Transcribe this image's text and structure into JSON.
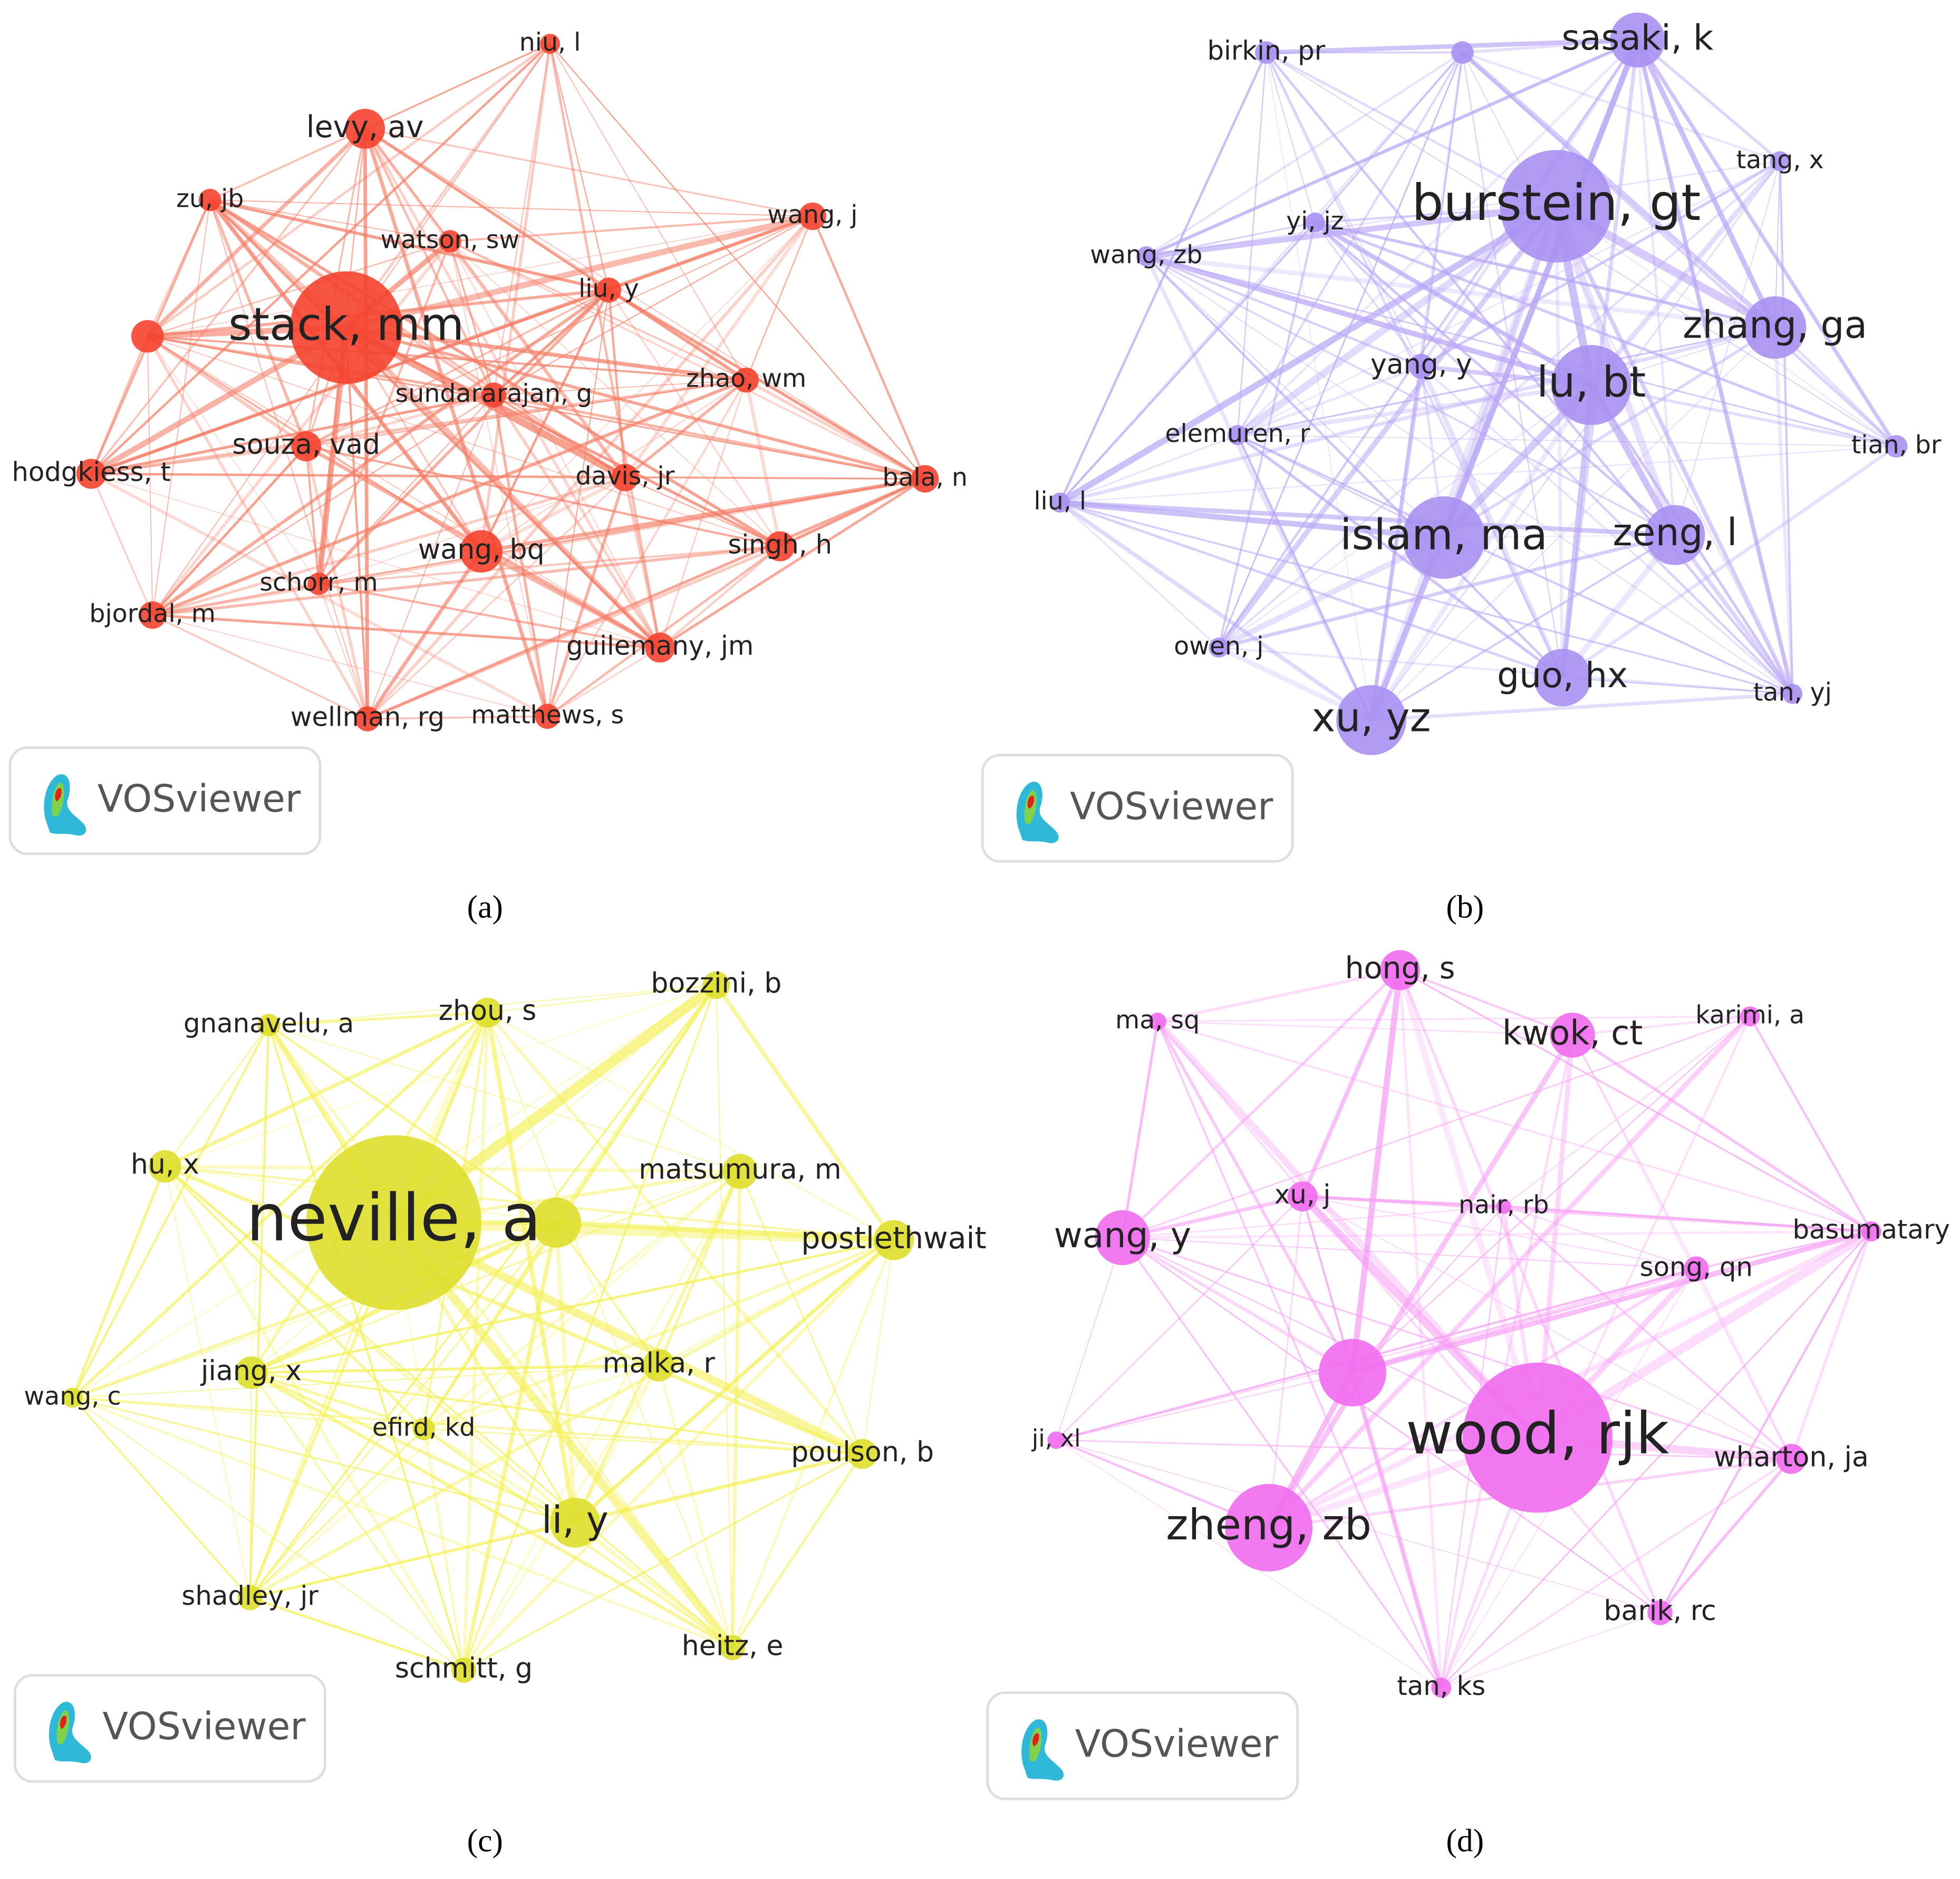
{
  "panels": [
    {
      "caption": "(a)",
      "logo": "VOSviewer",
      "nodes": [
        "stack, mm",
        "levy, av",
        "niu, l",
        "zu, jb",
        "wang, j",
        "watson, sw",
        "liu, y",
        "sundararajan, g",
        "zhao, wm",
        "souza, vad",
        "hodgkiess, t",
        "davis, jr",
        "bala, n",
        "wang, bq",
        "singh, h",
        "schorr, m",
        "bjordal, m",
        "guilemany, jm",
        "wellman, rg",
        "matthews, s"
      ]
    },
    {
      "caption": "(b)",
      "logo": "VOSviewer",
      "nodes": [
        "burstein, gt",
        "sasaki, k",
        "birkin, pr",
        "tang, x",
        "yi, jz",
        "wang, zb",
        "zhang, ga",
        "yang, y",
        "lu, bt",
        "elemuren, r",
        "tian, br",
        "liu, l",
        "islam, ma",
        "zeng, l",
        "owen, j",
        "guo, hx",
        "tan, yj",
        "xu, yz"
      ]
    },
    {
      "caption": "(c)",
      "logo": "VOSviewer",
      "nodes": [
        "neville, a",
        "bozzini, b",
        "zhou, s",
        "gnanavelu, a",
        "hu, x",
        "matsumura, m",
        "postlethwait",
        "jiang, x",
        "malka, r",
        "wang, c",
        "efird, kd",
        "poulson, b",
        "li, y",
        "shadley, jr",
        "heitz, e",
        "schmitt, g"
      ]
    },
    {
      "caption": "(d)",
      "logo": "VOSviewer",
      "nodes": [
        "wood, rjk",
        "zheng, zb",
        "hong, s",
        "kwok, ct",
        "ma, sq",
        "karimi, a",
        "xu, j",
        "nair, rb",
        "wang, y",
        "basumatary",
        "song, qn",
        "ji, xl",
        "wharton, ja",
        "barik, rc",
        "tan, ks"
      ]
    }
  ]
}
